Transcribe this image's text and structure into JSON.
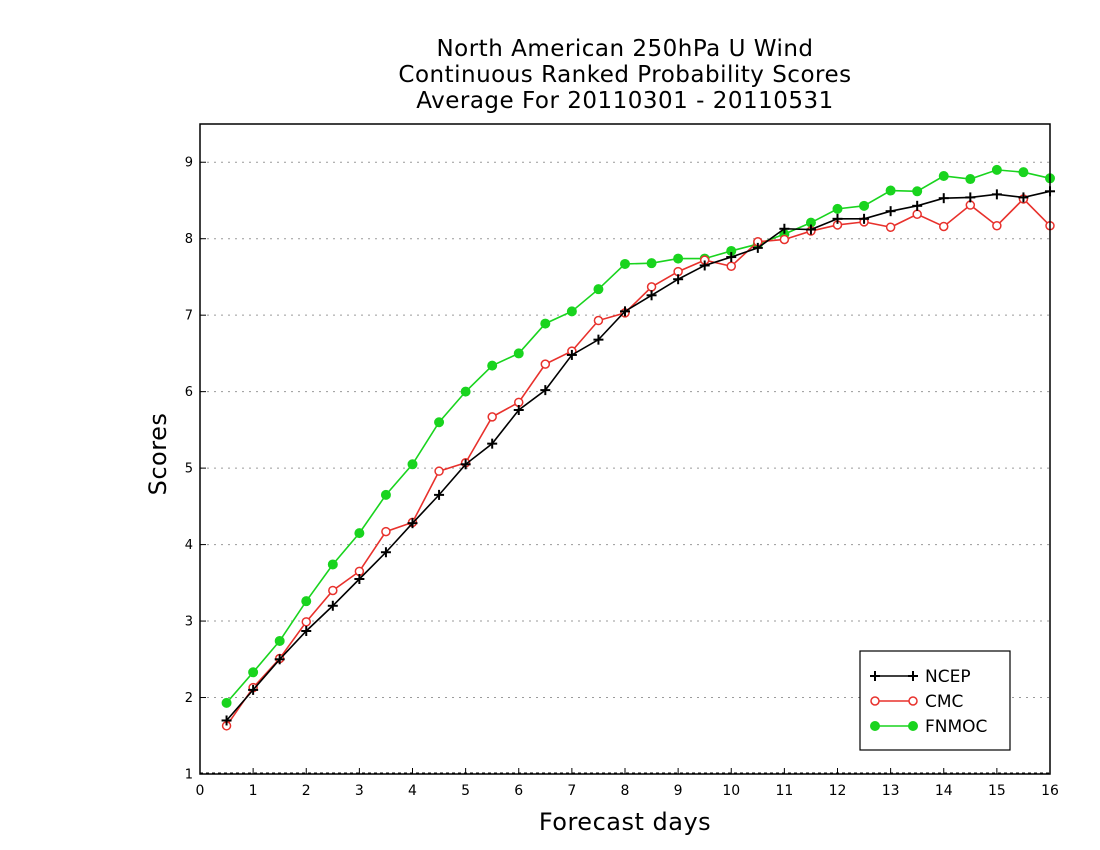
{
  "chart_data": {
    "type": "line",
    "title": [
      "North American 250hPa U Wind",
      "Continuous Ranked Probability Scores",
      "Average For 20110301 - 20110531"
    ],
    "xlabel": "Forecast days",
    "ylabel": "Scores",
    "xlim": [
      0,
      16
    ],
    "ylim": [
      1,
      9.5
    ],
    "xticks": [
      0,
      1,
      2,
      3,
      4,
      5,
      6,
      7,
      8,
      9,
      10,
      11,
      12,
      13,
      14,
      15,
      16
    ],
    "yticks": [
      1,
      2,
      3,
      4,
      5,
      6,
      7,
      8,
      9
    ],
    "grid": "horizontal dotted",
    "legend_position": "bottom-right",
    "x": [
      0.5,
      1,
      1.5,
      2,
      2.5,
      3,
      3.5,
      4,
      4.5,
      5,
      5.5,
      6,
      6.5,
      7,
      7.5,
      8,
      8.5,
      9,
      9.5,
      10,
      10.5,
      11,
      11.5,
      12,
      12.5,
      13,
      13.5,
      14,
      14.5,
      15,
      15.5,
      16
    ],
    "series": [
      {
        "name": "NCEP",
        "color": "#000000",
        "marker": "plus",
        "values": [
          1.7,
          2.1,
          2.5,
          2.87,
          3.2,
          3.55,
          3.9,
          4.28,
          4.65,
          5.05,
          5.32,
          5.76,
          6.02,
          6.48,
          6.68,
          7.05,
          7.26,
          7.47,
          7.65,
          7.76,
          7.88,
          8.13,
          8.12,
          8.26,
          8.26,
          8.36,
          8.43,
          8.53,
          8.54,
          8.58,
          8.54,
          8.62
        ]
      },
      {
        "name": "CMC",
        "color": "#e8312c",
        "marker": "open-circle",
        "values": [
          1.63,
          2.13,
          2.51,
          2.99,
          3.4,
          3.65,
          4.17,
          4.29,
          4.96,
          5.07,
          5.67,
          5.86,
          6.36,
          6.53,
          6.93,
          7.03,
          7.37,
          7.57,
          7.72,
          7.64,
          7.96,
          7.99,
          8.1,
          8.18,
          8.22,
          8.15,
          8.32,
          8.16,
          8.44,
          8.17,
          8.52,
          8.17
        ]
      },
      {
        "name": "FNMOC",
        "color": "#19d41e",
        "marker": "filled-circle",
        "values": [
          1.93,
          2.33,
          2.74,
          3.26,
          3.74,
          4.15,
          4.65,
          5.05,
          5.6,
          6.0,
          6.34,
          6.5,
          6.89,
          7.05,
          7.34,
          7.67,
          7.68,
          7.74,
          7.74,
          7.84,
          7.93,
          8.06,
          8.21,
          8.39,
          8.43,
          8.63,
          8.62,
          8.82,
          8.78,
          8.9,
          8.87,
          8.79
        ]
      }
    ]
  }
}
